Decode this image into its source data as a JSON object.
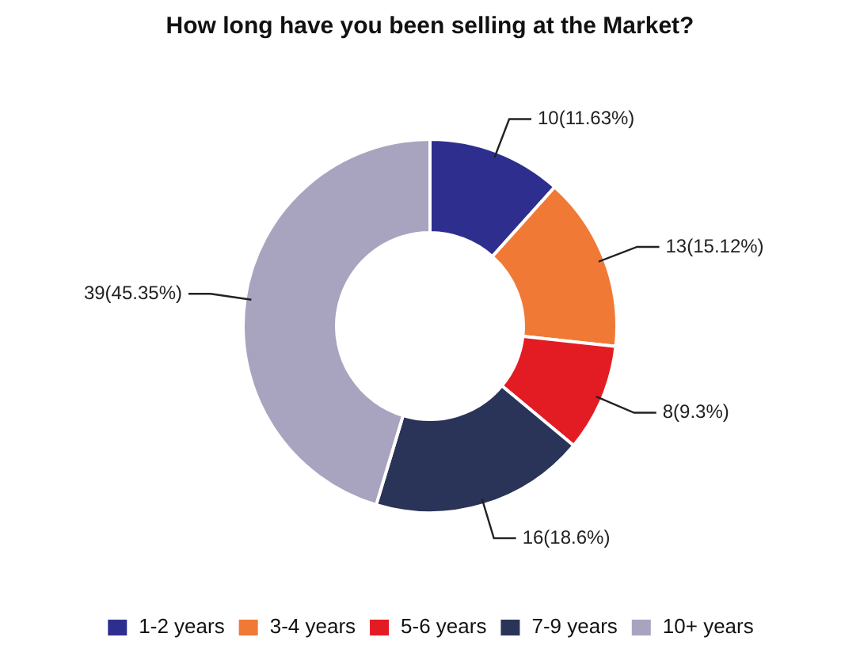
{
  "chart_data": {
    "type": "donut",
    "title": "How long have you been selling at the Market?",
    "categories": [
      "1-2 years",
      "3-4 years",
      "5-6 years",
      "7-9 years",
      "10+ years"
    ],
    "values": [
      10,
      13,
      8,
      16,
      39
    ],
    "value_labels": [
      "10(11.63%)",
      "13(15.12%)",
      "8(9.3%)",
      "16(18.6%)",
      "39(45.35%)"
    ],
    "colors": [
      "#2e2e8f",
      "#f07a35",
      "#e31b23",
      "#2a3358",
      "#a8a4c0"
    ],
    "legend": "bottom"
  }
}
